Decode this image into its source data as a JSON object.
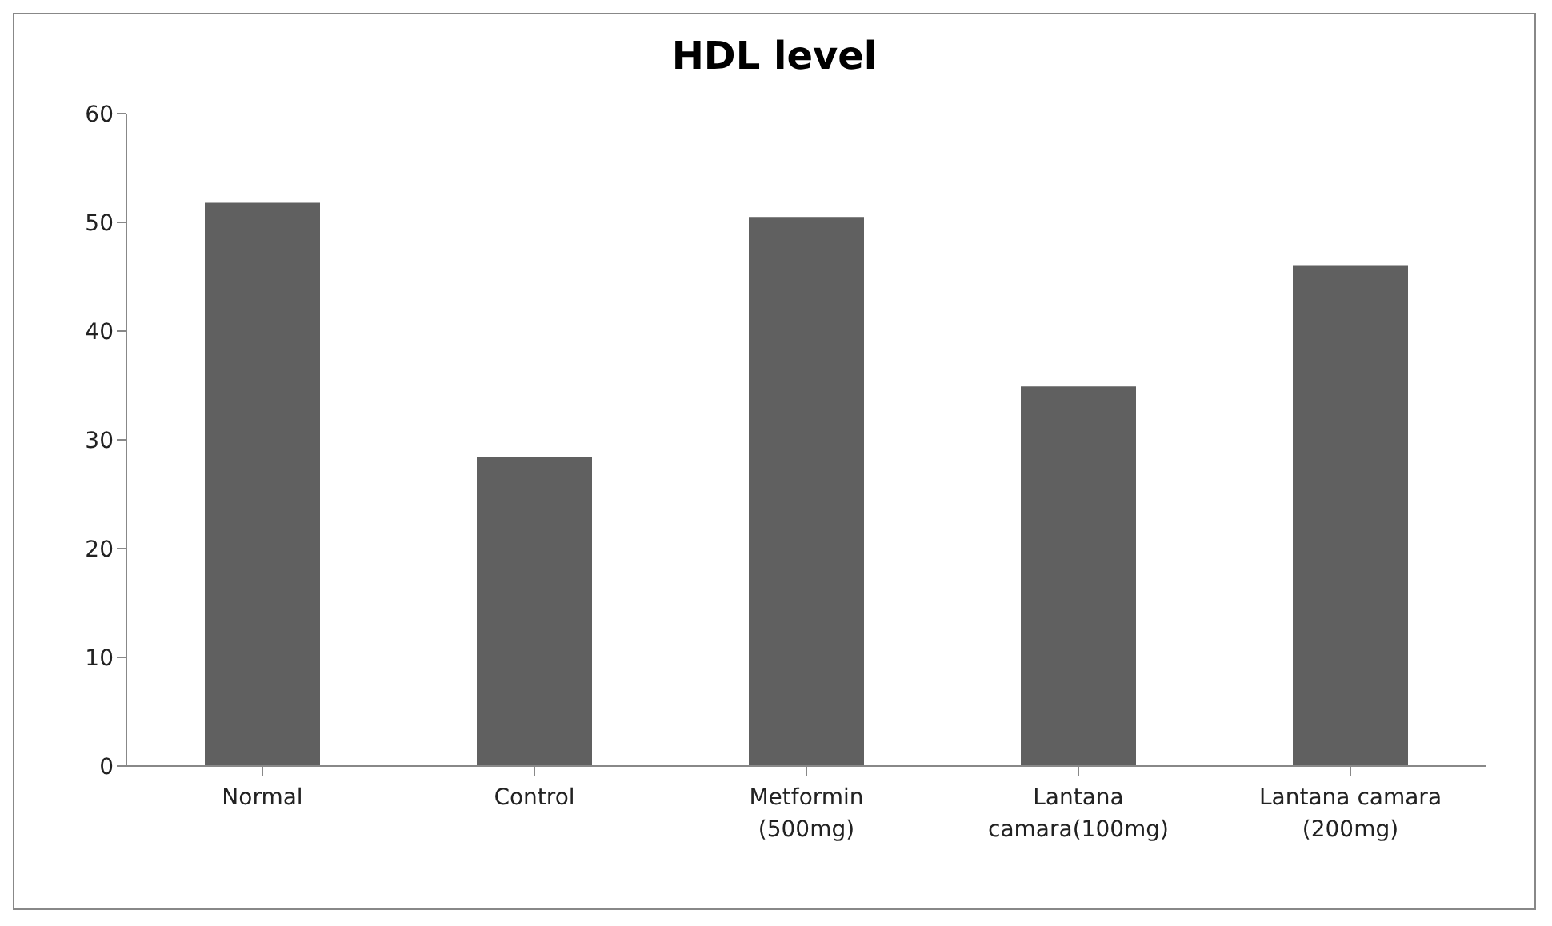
{
  "chart_data": {
    "type": "bar",
    "title": "HDL level",
    "categories": [
      "Normal",
      "Control",
      "Metformin\n(500mg)",
      "Lantana\ncamara(100mg)",
      "Lantana camara\n(200mg)"
    ],
    "values": [
      51.8,
      28.4,
      50.5,
      34.9,
      46.0
    ],
    "color": "#606060",
    "ylim": [
      0,
      60
    ],
    "yticks": [
      0,
      10,
      20,
      30,
      40,
      50,
      60
    ],
    "grid": false
  }
}
